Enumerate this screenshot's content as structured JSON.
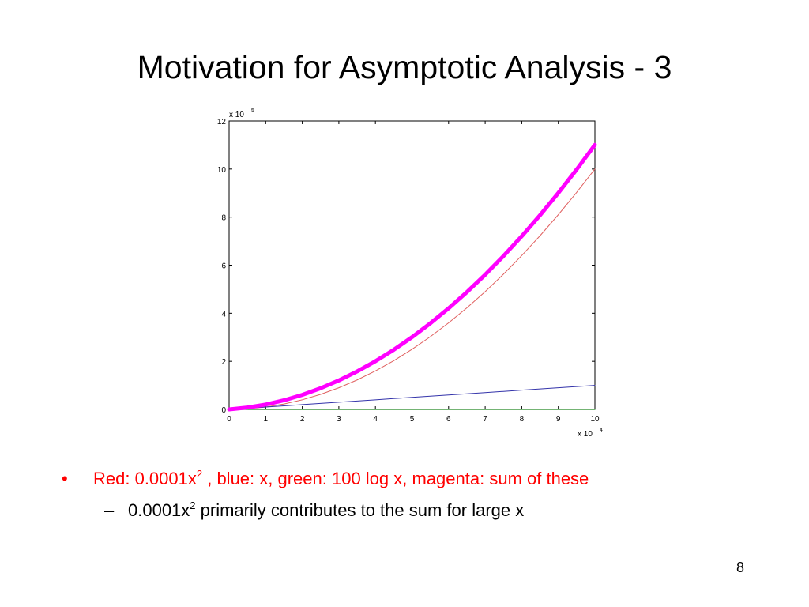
{
  "slide": {
    "title": "Motivation for Asymptotic Analysis - 3",
    "page_number": "8"
  },
  "bullets": [
    {
      "marker": "•",
      "text_before_sup": "Red: 0.0001x",
      "sup": "2",
      "text_after_sup": " , blue: x, green: 100 log x, magenta: sum of these",
      "color": "#ff0000"
    }
  ],
  "sub_bullets": [
    {
      "marker": "–",
      "text_before_sup": "0.0001x",
      "sup": "2",
      "text_after_sup": " primarily contributes to the sum for large x",
      "color": "#000000"
    }
  ],
  "chart_data": {
    "type": "line",
    "title": "",
    "xlabel": "",
    "ylabel": "",
    "x_scale_label": "x 10",
    "x_scale_exp": "4",
    "y_scale_label": "x 10",
    "y_scale_exp": "5",
    "xlim": [
      0,
      10
    ],
    "ylim": [
      0,
      12
    ],
    "x_ticks": [
      "0",
      "1",
      "2",
      "3",
      "4",
      "5",
      "6",
      "7",
      "8",
      "9",
      "10"
    ],
    "y_ticks": [
      "0",
      "2",
      "4",
      "6",
      "8",
      "10",
      "12"
    ],
    "grid": false,
    "x": [
      0,
      0.5,
      1,
      1.5,
      2,
      2.5,
      3,
      3.5,
      4,
      4.5,
      5,
      5.5,
      6,
      6.5,
      7,
      7.5,
      8,
      8.5,
      9,
      9.5,
      10
    ],
    "series": [
      {
        "color": "#e06060",
        "values": [
          0,
          0.025,
          0.1,
          0.225,
          0.4,
          0.625,
          0.9,
          1.225,
          1.6,
          2.025,
          2.5,
          3.025,
          3.6,
          4.225,
          4.9,
          5.625,
          6.4,
          7.225,
          8.1,
          9.025,
          10
        ]
      },
      {
        "color": "#3333aa",
        "values": [
          0,
          0.05,
          0.1,
          0.15,
          0.2,
          0.25,
          0.3,
          0.35,
          0.4,
          0.45,
          0.5,
          0.55,
          0.6,
          0.65,
          0.7,
          0.75,
          0.8,
          0.85,
          0.9,
          0.95,
          1.0
        ]
      },
      {
        "color": "#228822",
        "values": [
          0,
          0.0037,
          0.004,
          0.0042,
          0.0043,
          0.0044,
          0.0045,
          0.0045,
          0.0046,
          0.0047,
          0.0047,
          0.0047,
          0.0048,
          0.0048,
          0.0048,
          0.0049,
          0.0049,
          0.0049,
          0.005,
          0.005,
          0.005
        ]
      },
      {
        "color": "#ff00ff",
        "values": [
          0,
          0.079,
          0.204,
          0.379,
          0.604,
          0.879,
          1.205,
          1.58,
          2.005,
          2.48,
          3.005,
          3.58,
          4.205,
          4.88,
          5.605,
          6.38,
          7.205,
          8.08,
          9.005,
          9.98,
          11.005
        ]
      }
    ],
    "colors": {
      "red": "#e06060",
      "blue": "#3333aa",
      "green": "#228822",
      "magenta": "#ff00ff"
    }
  }
}
